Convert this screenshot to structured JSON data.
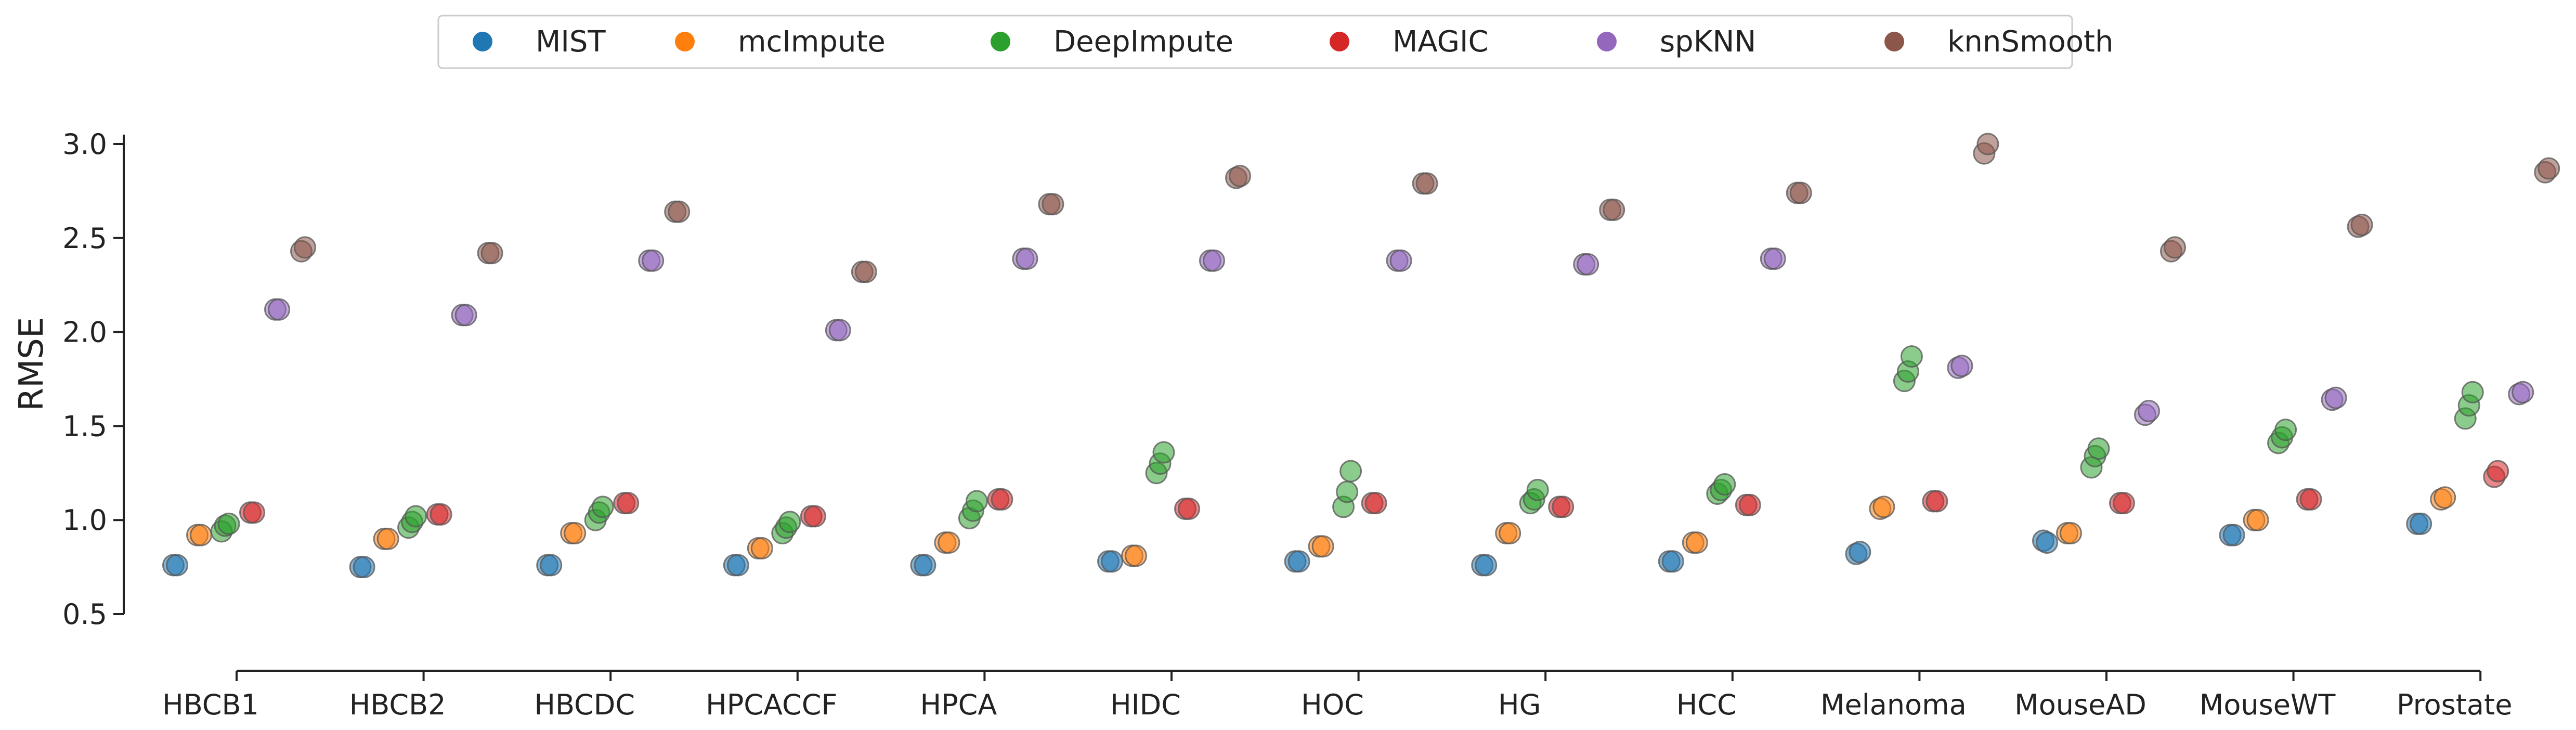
{
  "chart_data": {
    "type": "scatter",
    "title": "",
    "xlabel": "",
    "ylabel": "RMSE",
    "ylim": [
      0.2,
      3.15
    ],
    "yticks": [
      0.5,
      1.0,
      1.5,
      2.0,
      2.5,
      3.0
    ],
    "ytick_labels": [
      "0.5",
      "1.0",
      "1.5",
      "2.0",
      "2.5",
      "3.0"
    ],
    "grid": false,
    "legend_position": "top-center",
    "categories": [
      "HBCB1",
      "HBCB2",
      "HBCDC",
      "HPCACCF",
      "HPCA",
      "HIDC",
      "HOC",
      "HG",
      "HCC",
      "Melanoma",
      "MouseAD",
      "MouseWT",
      "Prostate"
    ],
    "series": [
      {
        "name": "MIST",
        "color": "#1f77b4",
        "values": [
          [
            0.76,
            0.76
          ],
          [
            0.75,
            0.75
          ],
          [
            0.76,
            0.76
          ],
          [
            0.76,
            0.76
          ],
          [
            0.76,
            0.76
          ],
          [
            0.78,
            0.78
          ],
          [
            0.78,
            0.78
          ],
          [
            0.76,
            0.76
          ],
          [
            0.78,
            0.78
          ],
          [
            0.82,
            0.83
          ],
          [
            0.89,
            0.88
          ],
          [
            0.92,
            0.92
          ],
          [
            0.98,
            0.98
          ]
        ]
      },
      {
        "name": "mcImpute",
        "color": "#ff7f0e",
        "values": [
          [
            0.92,
            0.92
          ],
          [
            0.9,
            0.9
          ],
          [
            0.93,
            0.93
          ],
          [
            0.85,
            0.85
          ],
          [
            0.88,
            0.88
          ],
          [
            0.81,
            0.81
          ],
          [
            0.86,
            0.86
          ],
          [
            0.93,
            0.93
          ],
          [
            0.88,
            0.88
          ],
          [
            1.06,
            1.07
          ],
          [
            0.93,
            0.93
          ],
          [
            1.0,
            1.0
          ],
          [
            1.11,
            1.12
          ]
        ]
      },
      {
        "name": "DeepImpute",
        "color": "#2ca02c",
        "values": [
          [
            0.94,
            0.97,
            0.98
          ],
          [
            0.96,
            0.99,
            1.02
          ],
          [
            1.0,
            1.04,
            1.07
          ],
          [
            0.93,
            0.96,
            0.99
          ],
          [
            1.01,
            1.05,
            1.1
          ],
          [
            1.25,
            1.3,
            1.36
          ],
          [
            1.07,
            1.15,
            1.26
          ],
          [
            1.09,
            1.11,
            1.16
          ],
          [
            1.14,
            1.16,
            1.19
          ],
          [
            1.74,
            1.79,
            1.87
          ],
          [
            1.28,
            1.34,
            1.38
          ],
          [
            1.41,
            1.44,
            1.48
          ],
          [
            1.54,
            1.61,
            1.68
          ]
        ]
      },
      {
        "name": "MAGIC",
        "color": "#d62728",
        "values": [
          [
            1.04,
            1.04
          ],
          [
            1.03,
            1.03
          ],
          [
            1.09,
            1.09
          ],
          [
            1.02,
            1.02
          ],
          [
            1.11,
            1.11
          ],
          [
            1.06,
            1.06
          ],
          [
            1.09,
            1.09
          ],
          [
            1.07,
            1.07
          ],
          [
            1.08,
            1.08
          ],
          [
            1.1,
            1.1
          ],
          [
            1.09,
            1.09
          ],
          [
            1.11,
            1.11
          ],
          [
            1.23,
            1.26
          ]
        ]
      },
      {
        "name": "spKNN",
        "color": "#9467bd",
        "values": [
          [
            2.12,
            2.12
          ],
          [
            2.09,
            2.09
          ],
          [
            2.38,
            2.38
          ],
          [
            2.01,
            2.01
          ],
          [
            2.39,
            2.39
          ],
          [
            2.38,
            2.38
          ],
          [
            2.38,
            2.38
          ],
          [
            2.36,
            2.36
          ],
          [
            2.39,
            2.39
          ],
          [
            1.81,
            1.82
          ],
          [
            1.56,
            1.58
          ],
          [
            1.64,
            1.65
          ],
          [
            1.67,
            1.68
          ]
        ]
      },
      {
        "name": "knnSmooth",
        "color": "#8c564b",
        "values": [
          [
            2.43,
            2.45
          ],
          [
            2.42,
            2.42
          ],
          [
            2.64,
            2.64
          ],
          [
            2.32,
            2.32
          ],
          [
            2.68,
            2.68
          ],
          [
            2.82,
            2.83
          ],
          [
            2.79,
            2.79
          ],
          [
            2.65,
            2.65
          ],
          [
            2.74,
            2.74
          ],
          [
            2.95,
            3.0
          ],
          [
            2.43,
            2.45
          ],
          [
            2.56,
            2.57
          ],
          [
            2.85,
            2.87
          ]
        ]
      }
    ]
  }
}
